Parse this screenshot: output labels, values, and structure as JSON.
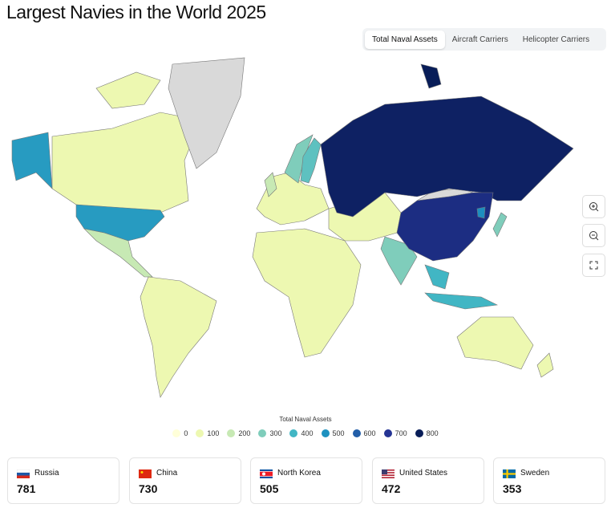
{
  "title": "Largest Navies in the World 2025",
  "tabs": [
    "Total Naval Assets",
    "Aircraft Carriers",
    "Helicopter Carriers"
  ],
  "legend": {
    "title": "Total Naval Assets",
    "steps": [
      {
        "value": 0,
        "color": "#ffffd9"
      },
      {
        "value": 100,
        "color": "#edf8b1"
      },
      {
        "value": 200,
        "color": "#c7e9b4"
      },
      {
        "value": 300,
        "color": "#7fcdbb"
      },
      {
        "value": 400,
        "color": "#41b6c4"
      },
      {
        "value": 500,
        "color": "#1d91c0"
      },
      {
        "value": 600,
        "color": "#225ea8"
      },
      {
        "value": 700,
        "color": "#253494"
      },
      {
        "value": 800,
        "color": "#081d58"
      }
    ]
  },
  "cards": [
    {
      "name": "Russia",
      "value": 781
    },
    {
      "name": "China",
      "value": 730
    },
    {
      "name": "North Korea",
      "value": 505
    },
    {
      "name": "United States",
      "value": 472
    },
    {
      "name": "Sweden",
      "value": 353
    }
  ]
}
